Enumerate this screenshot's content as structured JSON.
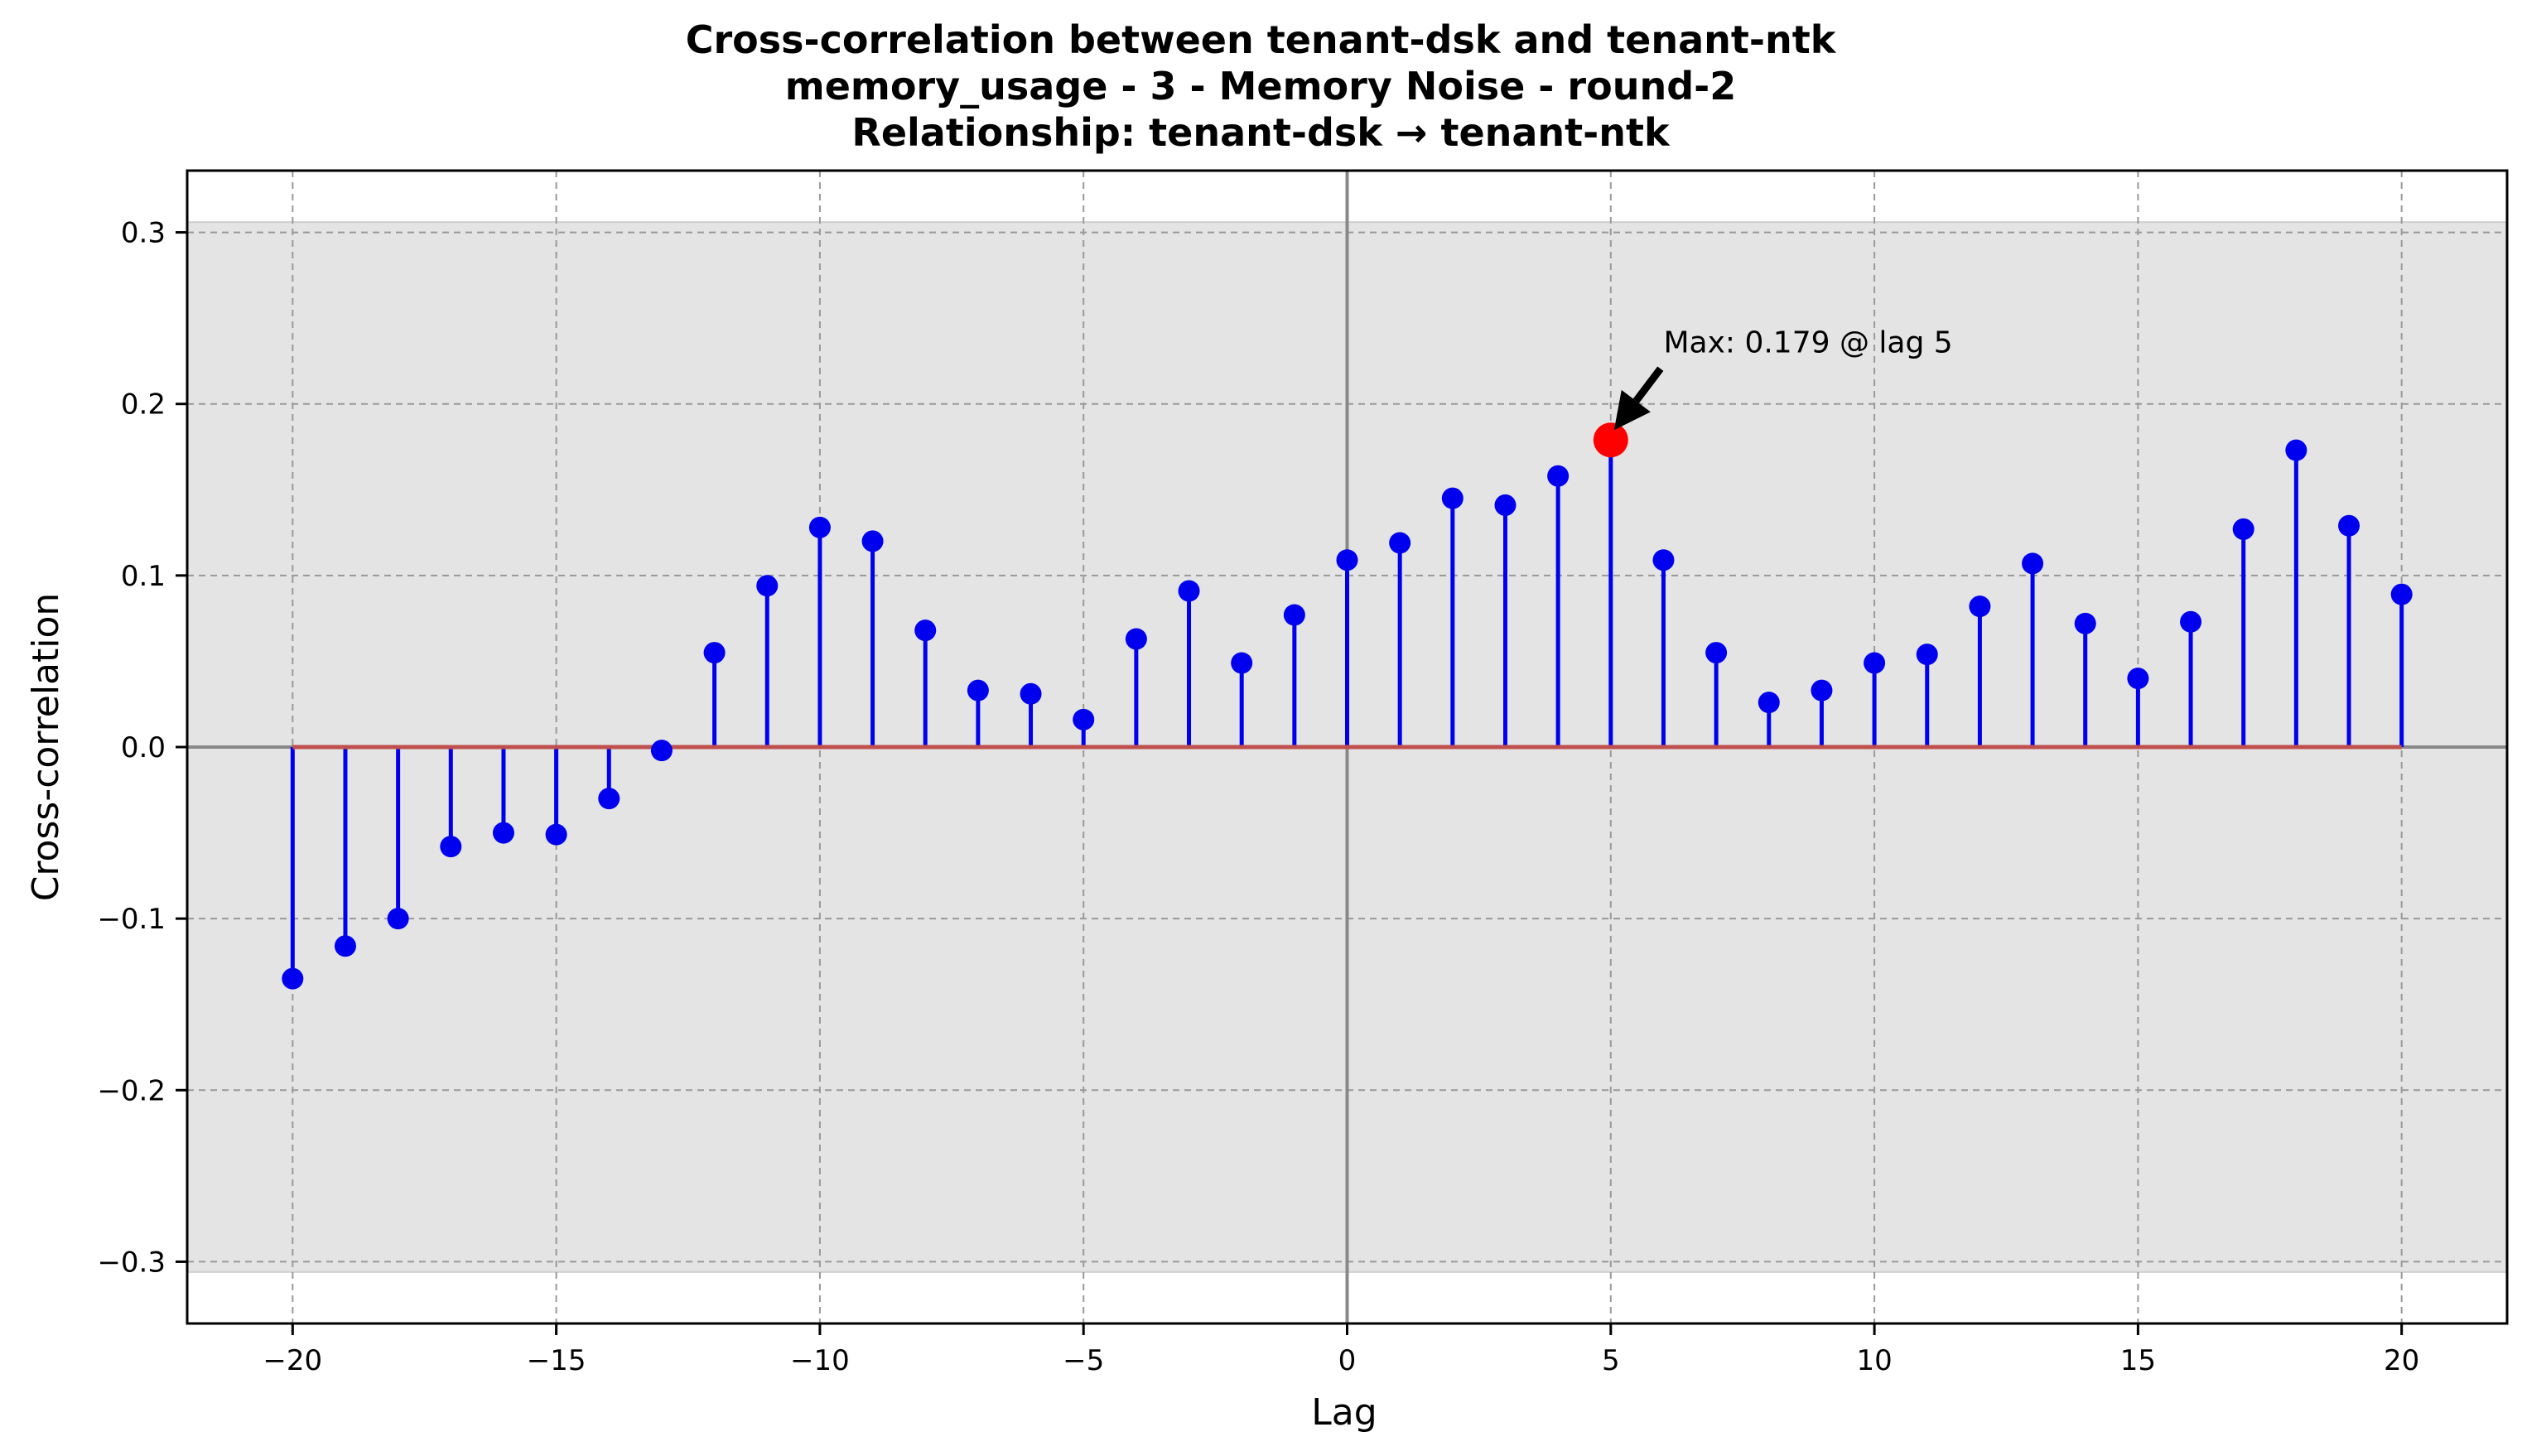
{
  "chart_data": {
    "type": "stem",
    "title_lines": [
      "Cross-correlation between tenant-dsk and tenant-ntk",
      "memory_usage - 3 - Memory Noise - round-2",
      "Relationship: tenant-dsk → tenant-ntk"
    ],
    "xlabel": "Lag",
    "ylabel": "Cross-correlation",
    "xlim": [
      -22,
      22
    ],
    "ylim": [
      -0.336,
      0.336
    ],
    "xticks": [
      -20,
      -15,
      -10,
      -5,
      0,
      5,
      10,
      15,
      20
    ],
    "xtick_labels": [
      "−20",
      "−15",
      "−10",
      "−5",
      "0",
      "5",
      "10",
      "15",
      "20"
    ],
    "yticks": [
      0.3,
      0.2,
      0.1,
      0.0,
      -0.1,
      -0.2,
      -0.3
    ],
    "ytick_labels": [
      "0.3",
      "0.2",
      "0.1",
      "0.0",
      "−0.1",
      "−0.2",
      "−0.3"
    ],
    "confidence_band": [
      -0.306,
      0.306
    ],
    "grid": true,
    "x": [
      -20,
      -19,
      -18,
      -17,
      -16,
      -15,
      -14,
      -13,
      -12,
      -11,
      -10,
      -9,
      -8,
      -7,
      -6,
      -5,
      -4,
      -3,
      -2,
      -1,
      0,
      1,
      2,
      3,
      4,
      5,
      6,
      7,
      8,
      9,
      10,
      11,
      12,
      13,
      14,
      15,
      16,
      17,
      18,
      19,
      20
    ],
    "values": [
      -0.135,
      -0.116,
      -0.1,
      -0.058,
      -0.05,
      -0.051,
      -0.03,
      -0.002,
      0.055,
      0.094,
      0.128,
      0.12,
      0.068,
      0.033,
      0.031,
      0.016,
      0.063,
      0.091,
      0.049,
      0.077,
      0.109,
      0.119,
      0.145,
      0.141,
      0.158,
      0.179,
      0.109,
      0.055,
      0.026,
      0.033,
      0.049,
      0.054,
      0.082,
      0.107,
      0.072,
      0.04,
      0.073,
      0.127,
      0.173,
      0.129,
      0.089
    ],
    "max_point": {
      "x": 5,
      "y": 0.179
    },
    "annotation": "Max: 0.179 @ lag 5",
    "colors": {
      "stem": "#0000ee",
      "marker": "#0000ee",
      "max_marker": "#ff0000",
      "baseline": "#c0504d",
      "band": "#e4e4e4",
      "grid": "#999999",
      "zero_line": "#888888"
    }
  }
}
